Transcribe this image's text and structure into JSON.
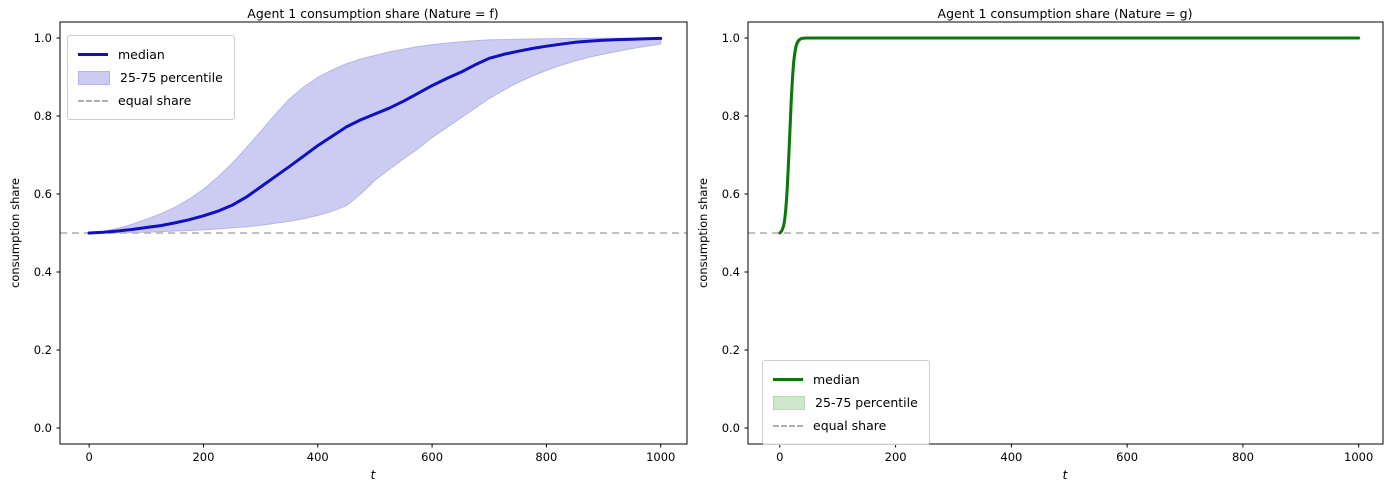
{
  "figure_background": "#ffffff",
  "chart_data": [
    {
      "type": "line",
      "title": "Agent 1 consumption share (Nature = f)",
      "xlabel": "t",
      "ylabel": "consumption share",
      "xlim": [
        -51,
        1046
      ],
      "ylim": [
        -0.041,
        1.041
      ],
      "xticks": [
        0,
        200,
        400,
        600,
        800,
        1000
      ],
      "yticks": [
        0.0,
        0.2,
        0.4,
        0.6,
        0.8,
        1.0
      ],
      "grid": false,
      "legend_position": "upper left",
      "equal_share": 0.5,
      "colors": {
        "median": "#0f0fc4",
        "band_fill": "#ccccf2",
        "band_edge": "#b4b4ec",
        "equal_share": "#b8b8b8"
      },
      "x": [
        0,
        25,
        50,
        75,
        100,
        125,
        150,
        175,
        200,
        225,
        250,
        275,
        300,
        325,
        350,
        375,
        400,
        425,
        450,
        475,
        500,
        525,
        550,
        575,
        600,
        625,
        650,
        675,
        700,
        725,
        750,
        775,
        800,
        825,
        850,
        875,
        900,
        925,
        950,
        975,
        1000
      ],
      "series": [
        {
          "name": "median",
          "style": "line",
          "values": [
            0.5,
            0.502,
            0.505,
            0.509,
            0.514,
            0.519,
            0.526,
            0.534,
            0.544,
            0.556,
            0.571,
            0.592,
            0.618,
            0.644,
            0.67,
            0.697,
            0.724,
            0.748,
            0.772,
            0.79,
            0.805,
            0.82,
            0.838,
            0.858,
            0.878,
            0.896,
            0.912,
            0.931,
            0.948,
            0.958,
            0.966,
            0.973,
            0.979,
            0.984,
            0.989,
            0.992,
            0.994,
            0.996,
            0.997,
            0.998,
            0.999
          ]
        },
        {
          "name": "25-75 percentile",
          "style": "band",
          "upper": [
            0.5,
            0.504,
            0.512,
            0.522,
            0.535,
            0.549,
            0.566,
            0.587,
            0.612,
            0.643,
            0.678,
            0.718,
            0.76,
            0.803,
            0.843,
            0.874,
            0.899,
            0.918,
            0.934,
            0.946,
            0.955,
            0.964,
            0.971,
            0.978,
            0.983,
            0.987,
            0.99,
            0.993,
            0.995,
            0.996,
            0.997,
            0.9975,
            0.998,
            0.9985,
            0.999,
            0.999,
            0.9992,
            0.9994,
            0.9996,
            0.9998,
            1.0
          ],
          "lower": [
            0.5,
            0.5,
            0.501,
            0.5015,
            0.502,
            0.5035,
            0.505,
            0.5065,
            0.508,
            0.5105,
            0.513,
            0.516,
            0.52,
            0.525,
            0.53,
            0.537,
            0.545,
            0.556,
            0.57,
            0.6,
            0.635,
            0.663,
            0.69,
            0.716,
            0.745,
            0.77,
            0.795,
            0.82,
            0.845,
            0.866,
            0.886,
            0.902,
            0.917,
            0.93,
            0.941,
            0.951,
            0.959,
            0.966,
            0.973,
            0.979,
            0.985
          ]
        },
        {
          "name": "equal share",
          "style": "dashed",
          "value": 0.5
        }
      ]
    },
    {
      "type": "line",
      "title": "Agent 1 consumption share (Nature = g)",
      "xlabel": "t",
      "ylabel": "consumption share",
      "xlim": [
        -55,
        1042
      ],
      "ylim": [
        -0.041,
        1.041
      ],
      "xticks": [
        0,
        200,
        400,
        600,
        800,
        1000
      ],
      "yticks": [
        0.0,
        0.2,
        0.4,
        0.6,
        0.8,
        1.0
      ],
      "grid": false,
      "legend_position": "lower left",
      "equal_share": 0.5,
      "colors": {
        "median": "#0c780c",
        "band_fill": "#cfe7cd",
        "band_edge": "#b6dab3",
        "equal_share": "#b8b8b8"
      },
      "x": [
        0,
        2,
        4,
        6,
        8,
        10,
        12,
        14,
        16,
        18,
        20,
        22,
        24,
        26,
        28,
        30,
        32,
        34,
        36,
        38,
        40,
        45,
        50,
        60,
        80,
        100,
        150,
        200,
        300,
        400,
        500,
        600,
        700,
        800,
        900,
        1000
      ],
      "series": [
        {
          "name": "median",
          "style": "line",
          "values": [
            0.5,
            0.503,
            0.508,
            0.516,
            0.53,
            0.556,
            0.596,
            0.65,
            0.715,
            0.785,
            0.85,
            0.902,
            0.94,
            0.964,
            0.979,
            0.988,
            0.993,
            0.996,
            0.998,
            0.999,
            0.9995,
            1,
            1,
            1,
            1,
            1,
            1,
            1,
            1,
            1,
            1,
            1,
            1,
            1,
            1,
            1
          ]
        },
        {
          "name": "25-75 percentile",
          "style": "band",
          "upper": [
            0.5,
            0.505,
            0.513,
            0.526,
            0.548,
            0.584,
            0.634,
            0.697,
            0.765,
            0.832,
            0.89,
            0.932,
            0.96,
            0.977,
            0.987,
            0.993,
            0.996,
            0.998,
            0.999,
            0.9995,
            1,
            1,
            1,
            1,
            1,
            1,
            1,
            1,
            1,
            1,
            1,
            1,
            1,
            1,
            1,
            1
          ],
          "lower": [
            0.5,
            0.502,
            0.505,
            0.51,
            0.519,
            0.534,
            0.559,
            0.598,
            0.652,
            0.718,
            0.788,
            0.85,
            0.9,
            0.936,
            0.96,
            0.976,
            0.985,
            0.991,
            0.994,
            0.996,
            0.998,
            0.999,
            1,
            1,
            1,
            1,
            1,
            1,
            1,
            1,
            1,
            1,
            1,
            1,
            1,
            1
          ]
        },
        {
          "name": "equal share",
          "style": "dashed",
          "value": 0.5
        }
      ]
    }
  ],
  "legend_labels": {
    "median": "median",
    "band": "25-75 percentile",
    "equal_share": "equal share"
  }
}
